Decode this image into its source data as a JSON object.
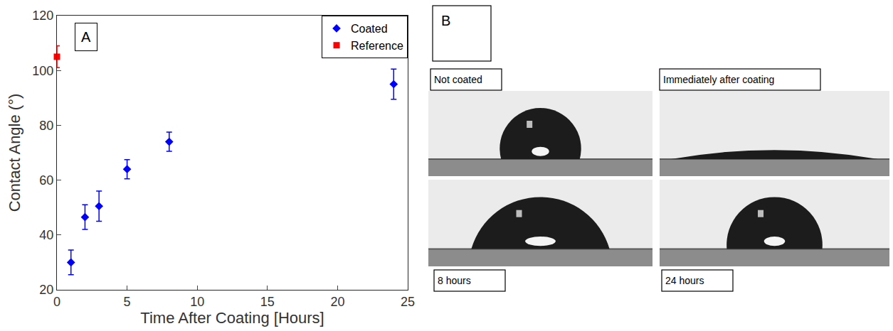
{
  "chart_data": {
    "type": "scatter",
    "x_label": "Time After Coating [Hours]",
    "y_label": "Contact Angle (°)",
    "annotations": [
      "A"
    ],
    "xlim": [
      0,
      25
    ],
    "xticks": [
      0,
      5,
      10,
      15,
      20,
      25
    ],
    "ylim": [
      20,
      120
    ],
    "yticks": [
      20,
      40,
      60,
      80,
      100,
      120
    ],
    "grid": false,
    "legend": "top right",
    "series": [
      {
        "name": "Coated",
        "color": "#0000ff",
        "marker": "diamond",
        "x": [
          1,
          2,
          3,
          5,
          8,
          24
        ],
        "values": [
          30,
          46.5,
          50.5,
          64,
          74,
          95
        ],
        "errors": [
          4.5,
          4.5,
          5.5,
          3.5,
          3.5,
          5.5
        ]
      },
      {
        "name": "Reference",
        "color": "#ff0000",
        "marker": "square",
        "x": [
          0
        ],
        "values": [
          105
        ],
        "errors": [
          4
        ]
      }
    ]
  },
  "panel_b": {
    "label": "B",
    "images": [
      {
        "caption": "Not coated",
        "contact_angle": 105
      },
      {
        "caption": "Immediately after coating",
        "contact_angle": 10
      },
      {
        "caption": "8 hours",
        "contact_angle": 74
      },
      {
        "caption": "24 hours",
        "contact_angle": 95
      }
    ]
  }
}
